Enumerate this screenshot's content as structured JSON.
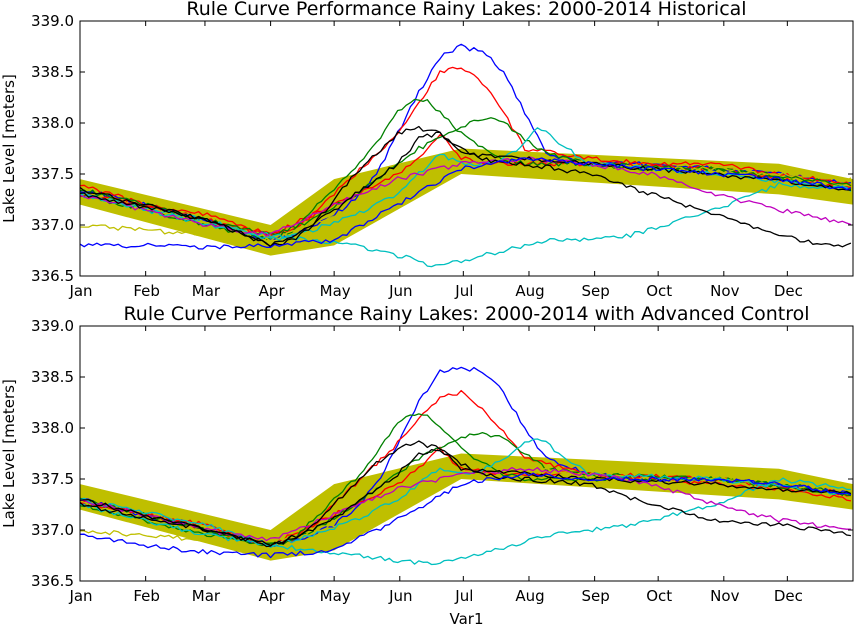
{
  "chart_data": [
    {
      "type": "line",
      "title": "Rule Curve Performance Rainy Lakes: 2000-2014 Historical",
      "ylabel": "Lake Level [meters]",
      "xlabel": "",
      "xlim": [
        0,
        365
      ],
      "ylim": [
        336.5,
        339.0
      ],
      "yticks": [
        "339.0",
        "338.5",
        "338.0",
        "337.5",
        "337.0",
        "336.5"
      ],
      "xtick_labels": [
        "Jan",
        "Feb",
        "Mar",
        "Apr",
        "May",
        "Jun",
        "Jul",
        "Aug",
        "Sep",
        "Oct",
        "Nov",
        "Dec"
      ],
      "grid": false,
      "rule_band": {
        "color": "#bfbf00",
        "x": [
          0,
          90,
          120,
          180,
          330,
          365
        ],
        "upper": [
          337.45,
          337.0,
          337.45,
          337.75,
          337.6,
          337.45
        ],
        "lower": [
          337.2,
          336.7,
          336.8,
          337.5,
          337.3,
          337.2
        ]
      },
      "series": [
        {
          "color": "#0000ff",
          "x": [
            0,
            30,
            60,
            90,
            100,
            110,
            120,
            130,
            140,
            150,
            160,
            170,
            180,
            190,
            200,
            210,
            220,
            240,
            270,
            300,
            330,
            365
          ],
          "y": [
            337.35,
            337.2,
            337.05,
            336.85,
            336.9,
            337.0,
            337.1,
            337.25,
            337.5,
            337.9,
            338.3,
            338.65,
            338.75,
            338.7,
            338.5,
            338.1,
            337.7,
            337.6,
            337.6,
            337.55,
            337.5,
            337.4
          ]
        },
        {
          "color": "#ff0000",
          "x": [
            0,
            30,
            60,
            90,
            100,
            110,
            120,
            130,
            140,
            150,
            160,
            170,
            180,
            190,
            200,
            210,
            240,
            270,
            300,
            330,
            365
          ],
          "y": [
            337.4,
            337.2,
            337.05,
            336.9,
            336.95,
            337.1,
            337.3,
            337.5,
            337.7,
            337.9,
            338.2,
            338.5,
            338.55,
            338.4,
            338.1,
            337.75,
            337.65,
            337.6,
            337.6,
            337.5,
            337.4
          ]
        },
        {
          "color": "#ff0000",
          "x": [
            0,
            60,
            90,
            110,
            130,
            150,
            160,
            170,
            180,
            200,
            240,
            300,
            365
          ],
          "y": [
            337.3,
            337.1,
            336.9,
            337.1,
            337.3,
            337.5,
            337.65,
            337.9,
            337.65,
            337.6,
            337.6,
            337.55,
            337.35
          ]
        },
        {
          "color": "#008000",
          "x": [
            0,
            30,
            60,
            90,
            100,
            110,
            120,
            130,
            140,
            150,
            155,
            160,
            165,
            170,
            180,
            190,
            200,
            210,
            240,
            270,
            300,
            330,
            365
          ],
          "y": [
            337.3,
            337.15,
            337.0,
            336.85,
            336.95,
            337.15,
            337.35,
            337.55,
            337.8,
            338.1,
            338.2,
            338.23,
            338.2,
            338.1,
            337.9,
            337.75,
            337.65,
            337.6,
            337.6,
            337.55,
            337.55,
            337.45,
            337.35
          ]
        },
        {
          "color": "#008000",
          "x": [
            0,
            60,
            90,
            110,
            130,
            150,
            160,
            170,
            180,
            190,
            200,
            210,
            220,
            240,
            300,
            365
          ],
          "y": [
            337.35,
            337.05,
            336.9,
            337.05,
            337.3,
            337.6,
            337.75,
            337.85,
            337.95,
            338.05,
            338.0,
            337.85,
            337.7,
            337.6,
            337.55,
            337.4
          ]
        },
        {
          "color": "#bfbf00",
          "x": [
            0,
            30,
            60,
            90,
            120,
            150,
            180,
            210,
            240,
            270,
            300,
            330,
            365
          ],
          "y": [
            337.0,
            336.95,
            336.9,
            336.85,
            337.1,
            337.35,
            337.6,
            337.65,
            337.6,
            337.55,
            337.55,
            337.5,
            337.45
          ]
        },
        {
          "color": "#00bfbf",
          "x": [
            0,
            30,
            60,
            90,
            110,
            130,
            150,
            160,
            165,
            170,
            180,
            190,
            200,
            210,
            220,
            240,
            260,
            300,
            330,
            365
          ],
          "y": [
            337.3,
            337.15,
            337.0,
            336.9,
            336.85,
            336.8,
            336.7,
            336.65,
            336.6,
            336.6,
            336.65,
            336.7,
            336.75,
            336.8,
            336.85,
            336.85,
            336.9,
            337.15,
            337.4,
            337.35
          ]
        },
        {
          "color": "#00bfbf",
          "x": [
            0,
            60,
            90,
            110,
            130,
            150,
            160,
            170,
            180,
            190,
            200,
            210,
            215,
            220,
            230,
            240,
            300,
            365
          ],
          "y": [
            337.3,
            337.05,
            336.85,
            336.95,
            337.1,
            337.3,
            337.5,
            337.7,
            337.6,
            337.6,
            337.65,
            337.8,
            337.95,
            337.9,
            337.75,
            337.6,
            337.5,
            337.35
          ]
        },
        {
          "color": "#bf00bf",
          "x": [
            0,
            30,
            60,
            90,
            120,
            150,
            180,
            210,
            240,
            270,
            300,
            330,
            365
          ],
          "y": [
            337.3,
            337.15,
            337.0,
            336.9,
            337.2,
            337.45,
            337.6,
            337.65,
            337.6,
            337.5,
            337.3,
            337.15,
            337.0
          ]
        },
        {
          "color": "#000000",
          "x": [
            0,
            30,
            60,
            90,
            100,
            110,
            120,
            130,
            140,
            150,
            160,
            170,
            180,
            190,
            200,
            210,
            240,
            270,
            300,
            330,
            350,
            365
          ],
          "y": [
            337.35,
            337.2,
            337.05,
            336.8,
            336.85,
            337.0,
            337.25,
            337.5,
            337.7,
            337.9,
            337.95,
            337.9,
            337.75,
            337.65,
            337.6,
            337.6,
            337.5,
            337.3,
            337.1,
            336.9,
            336.8,
            336.8
          ]
        },
        {
          "color": "#000000",
          "x": [
            0,
            60,
            90,
            110,
            130,
            150,
            160,
            170,
            180,
            210,
            240,
            300,
            365
          ],
          "y": [
            337.3,
            337.05,
            336.8,
            337.0,
            337.3,
            337.6,
            337.85,
            337.9,
            337.7,
            337.65,
            337.6,
            337.5,
            337.35
          ]
        },
        {
          "color": "#0000ff",
          "x": [
            0,
            30,
            60,
            90,
            120,
            150,
            180,
            210,
            240,
            270,
            300,
            330,
            365
          ],
          "y": [
            336.8,
            336.8,
            336.78,
            336.8,
            336.85,
            337.2,
            337.55,
            337.65,
            337.6,
            337.55,
            337.5,
            337.45,
            337.35
          ]
        }
      ]
    },
    {
      "type": "line",
      "title": "Rule Curve Performance Rainy Lakes: 2000-2014 with Advanced Control",
      "ylabel": "Lake Level [meters]",
      "xlabel": "Var1",
      "xlim": [
        0,
        365
      ],
      "ylim": [
        336.5,
        339.0
      ],
      "yticks": [
        "339.0",
        "338.5",
        "338.0",
        "337.5",
        "337.0",
        "336.5"
      ],
      "xtick_labels": [
        "Jan",
        "Feb",
        "Mar",
        "Apr",
        "May",
        "Jun",
        "Jul",
        "Aug",
        "Sep",
        "Oct",
        "Nov",
        "Dec"
      ],
      "grid": false,
      "rule_band": {
        "color": "#bfbf00",
        "x": [
          0,
          90,
          120,
          180,
          330,
          365
        ],
        "upper": [
          337.45,
          337.0,
          337.45,
          337.75,
          337.6,
          337.45
        ],
        "lower": [
          337.2,
          336.7,
          336.8,
          337.5,
          337.3,
          337.2
        ]
      },
      "series": [
        {
          "color": "#0000ff",
          "x": [
            0,
            30,
            60,
            90,
            100,
            110,
            120,
            130,
            140,
            150,
            160,
            170,
            180,
            190,
            200,
            210,
            220,
            240,
            270,
            300,
            330,
            365
          ],
          "y": [
            337.3,
            337.15,
            337.0,
            336.85,
            336.9,
            336.95,
            337.05,
            337.2,
            337.45,
            337.85,
            338.25,
            338.55,
            338.6,
            338.55,
            338.35,
            338.0,
            337.7,
            337.55,
            337.5,
            337.5,
            337.45,
            337.35
          ]
        },
        {
          "color": "#ff0000",
          "x": [
            0,
            30,
            60,
            90,
            100,
            110,
            120,
            130,
            140,
            150,
            160,
            170,
            180,
            190,
            200,
            210,
            240,
            270,
            300,
            330,
            365
          ],
          "y": [
            337.3,
            337.15,
            337.0,
            336.85,
            336.9,
            337.05,
            337.25,
            337.45,
            337.65,
            337.85,
            338.1,
            338.3,
            338.35,
            338.2,
            337.95,
            337.7,
            337.55,
            337.5,
            337.45,
            337.4,
            337.3
          ]
        },
        {
          "color": "#ff0000",
          "x": [
            0,
            60,
            90,
            110,
            130,
            150,
            160,
            170,
            180,
            200,
            240,
            300,
            365
          ],
          "y": [
            337.25,
            337.05,
            336.85,
            337.05,
            337.25,
            337.45,
            337.6,
            337.8,
            337.6,
            337.55,
            337.55,
            337.5,
            337.35
          ]
        },
        {
          "color": "#008000",
          "x": [
            0,
            30,
            60,
            90,
            100,
            110,
            120,
            130,
            140,
            150,
            155,
            160,
            165,
            170,
            180,
            190,
            200,
            210,
            240,
            270,
            300,
            330,
            365
          ],
          "y": [
            337.25,
            337.1,
            336.95,
            336.85,
            336.9,
            337.1,
            337.3,
            337.5,
            337.75,
            338.05,
            338.13,
            338.15,
            338.1,
            338.0,
            337.8,
            337.65,
            337.55,
            337.5,
            337.5,
            337.5,
            337.5,
            337.45,
            337.35
          ]
        },
        {
          "color": "#008000",
          "x": [
            0,
            60,
            90,
            110,
            130,
            150,
            160,
            170,
            180,
            190,
            200,
            210,
            220,
            240,
            300,
            365
          ],
          "y": [
            337.3,
            337.0,
            336.85,
            337.0,
            337.25,
            337.55,
            337.7,
            337.8,
            337.9,
            337.95,
            337.9,
            337.75,
            337.6,
            337.55,
            337.5,
            337.35
          ]
        },
        {
          "color": "#bfbf00",
          "x": [
            0,
            30,
            60,
            90,
            120,
            150,
            180,
            210,
            240,
            270,
            300,
            330,
            365
          ],
          "y": [
            337.0,
            336.95,
            336.9,
            336.85,
            337.05,
            337.3,
            337.55,
            337.6,
            337.55,
            337.5,
            337.5,
            337.45,
            337.4
          ]
        },
        {
          "color": "#00bfbf",
          "x": [
            0,
            30,
            60,
            90,
            110,
            130,
            150,
            160,
            165,
            170,
            180,
            190,
            200,
            210,
            220,
            240,
            260,
            300,
            330,
            365
          ],
          "y": [
            337.25,
            337.1,
            336.95,
            336.85,
            336.8,
            336.75,
            336.7,
            336.68,
            336.66,
            336.68,
            336.72,
            336.78,
            336.82,
            336.88,
            336.95,
            337.0,
            337.05,
            337.25,
            337.5,
            337.4
          ]
        },
        {
          "color": "#00bfbf",
          "x": [
            0,
            60,
            90,
            110,
            130,
            150,
            160,
            170,
            180,
            190,
            200,
            210,
            215,
            220,
            230,
            240,
            300,
            365
          ],
          "y": [
            337.3,
            337.05,
            336.85,
            336.95,
            337.1,
            337.3,
            337.45,
            337.6,
            337.55,
            337.6,
            337.7,
            337.85,
            337.9,
            337.85,
            337.7,
            337.55,
            337.5,
            337.35
          ]
        },
        {
          "color": "#bf00bf",
          "x": [
            0,
            30,
            60,
            90,
            120,
            150,
            180,
            210,
            240,
            270,
            300,
            330,
            365
          ],
          "y": [
            337.3,
            337.15,
            337.0,
            336.9,
            337.15,
            337.4,
            337.55,
            337.6,
            337.55,
            337.45,
            337.25,
            337.1,
            337.0
          ]
        },
        {
          "color": "#000000",
          "x": [
            0,
            30,
            60,
            90,
            100,
            110,
            120,
            130,
            140,
            150,
            160,
            170,
            180,
            190,
            200,
            210,
            240,
            270,
            300,
            330,
            350,
            365
          ],
          "y": [
            337.3,
            337.15,
            337.0,
            336.85,
            336.9,
            337.05,
            337.25,
            337.45,
            337.65,
            337.8,
            337.85,
            337.8,
            337.65,
            337.55,
            337.5,
            337.5,
            337.45,
            337.25,
            337.1,
            337.05,
            337.0,
            336.95
          ]
        },
        {
          "color": "#000000",
          "x": [
            0,
            60,
            90,
            110,
            130,
            150,
            160,
            170,
            180,
            210,
            240,
            300,
            365
          ],
          "y": [
            337.25,
            337.0,
            336.85,
            337.0,
            337.25,
            337.55,
            337.75,
            337.8,
            337.6,
            337.55,
            337.5,
            337.45,
            337.35
          ]
        },
        {
          "color": "#0000ff",
          "x": [
            0,
            30,
            60,
            90,
            120,
            150,
            180,
            210,
            240,
            270,
            300,
            330,
            365
          ],
          "y": [
            336.95,
            336.85,
            336.78,
            336.75,
            336.8,
            337.1,
            337.45,
            337.55,
            337.5,
            337.5,
            337.5,
            337.45,
            337.35
          ]
        }
      ]
    }
  ]
}
